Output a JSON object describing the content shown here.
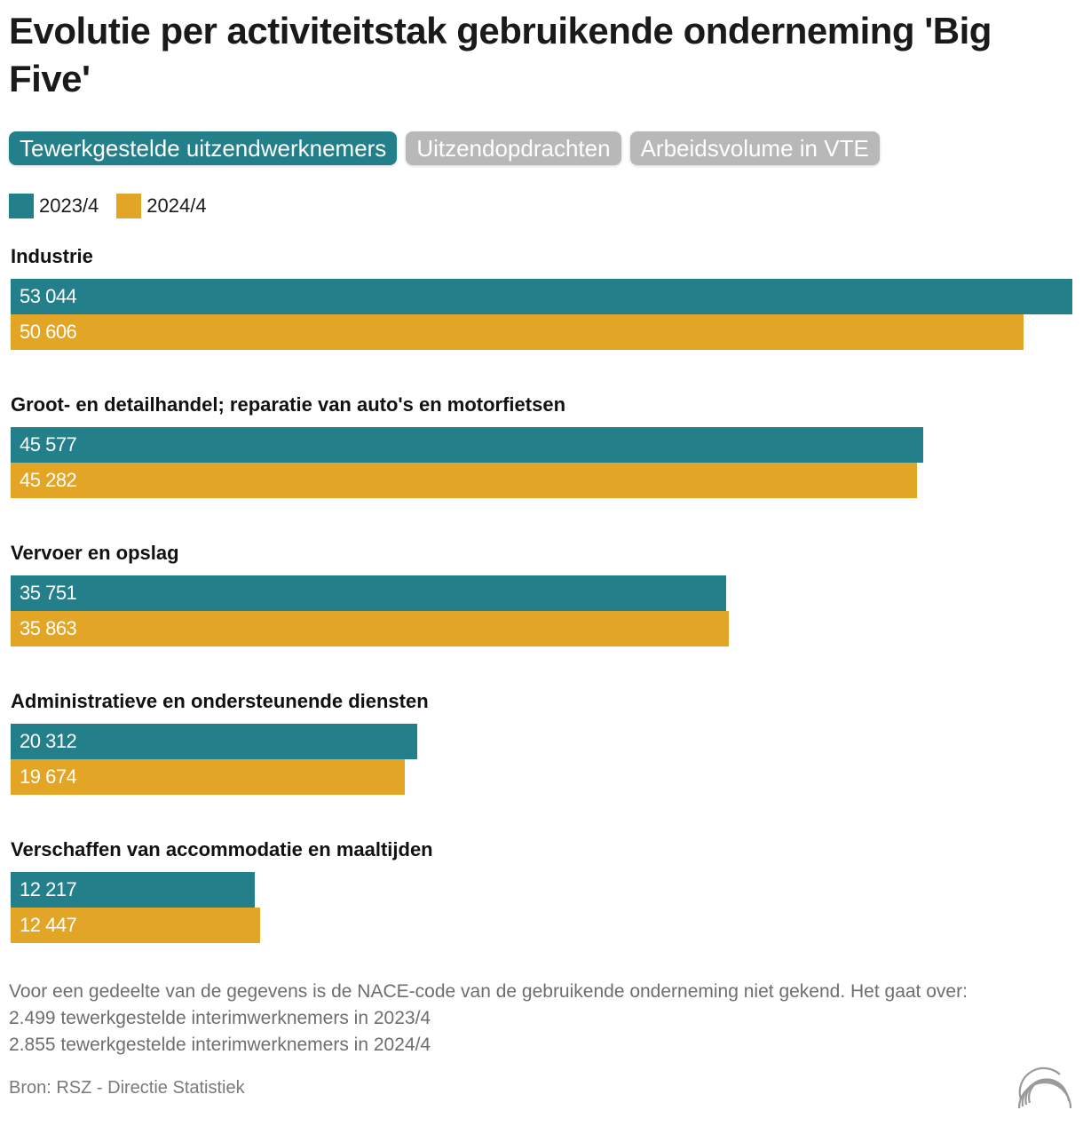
{
  "title": "Evolutie per activiteitstak gebruikende onderneming 'Big Five'",
  "tabs": [
    {
      "label": "Tewerkgestelde uitzendwerknemers",
      "active": true
    },
    {
      "label": "Uitzendopdrachten",
      "active": false
    },
    {
      "label": "Arbeidsvolume in VTE",
      "active": false
    }
  ],
  "colors": {
    "series_2023": "#237f8a",
    "series_2024": "#e3a526",
    "tab_active": "#237f8a",
    "tab_inactive": "#b8b8b8"
  },
  "chart_data": {
    "type": "bar",
    "orientation": "horizontal",
    "categories": [
      "Industrie",
      "Groot- en detailhandel; reparatie van auto's en motorfietsen",
      "Vervoer en opslag",
      "Administratieve en ondersteunende diensten",
      "Verschaffen van accommodatie en maaltijden"
    ],
    "series": [
      {
        "name": "2023/4",
        "values": [
          53044,
          45577,
          35751,
          20312,
          12217
        ],
        "labels": [
          "53 044",
          "45 577",
          "35 751",
          "20 312",
          "12 217"
        ]
      },
      {
        "name": "2024/4",
        "values": [
          50606,
          45282,
          35863,
          19674,
          12447
        ],
        "labels": [
          "50 606",
          "45 282",
          "35 863",
          "19 674",
          "12 447"
        ]
      }
    ],
    "legend": [
      "2023/4",
      "2024/4"
    ],
    "xlim": [
      0,
      53044
    ]
  },
  "footnote": {
    "lines": [
      "Voor een gedeelte van de gegevens is de NACE-code van de gebruikende onderneming niet gekend. Het gaat over:",
      "2.499 tewerkgestelde interimwerknemers in 2023/4",
      "2.855 tewerkgestelde interimwerknemers in 2024/4"
    ]
  },
  "source": "Bron: RSZ - Directie Statistiek"
}
